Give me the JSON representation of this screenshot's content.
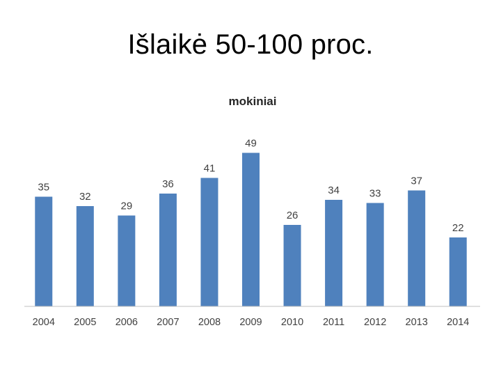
{
  "slide": {
    "title": "Išlaikė 50-100 proc."
  },
  "chart_data": {
    "type": "bar",
    "title": "mokiniai",
    "categories": [
      "2004",
      "2005",
      "2006",
      "2007",
      "2008",
      "2009",
      "2010",
      "2011",
      "2012",
      "2013",
      "2014"
    ],
    "values": [
      35,
      32,
      29,
      36,
      41,
      49,
      26,
      34,
      33,
      37,
      22
    ],
    "data_labels": true,
    "ylim": [
      0,
      60
    ],
    "grid": false,
    "legend": false,
    "bar_color": "#4F81BD",
    "axis_color": "#BFBFBF"
  }
}
